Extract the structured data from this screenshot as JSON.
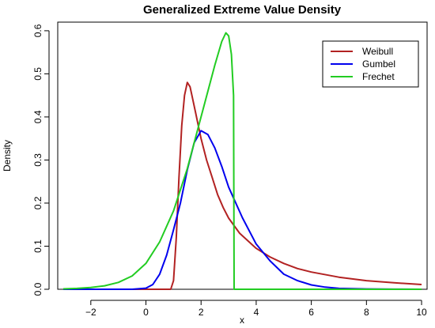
{
  "chart_data": {
    "type": "line",
    "title": "Generalized Extreme Value Density",
    "xlabel": "x",
    "ylabel": "Density",
    "xlim": [
      -3.2,
      10.2
    ],
    "ylim": [
      0,
      0.62
    ],
    "xticks": [
      -2,
      0,
      2,
      4,
      6,
      8,
      10
    ],
    "xtick_labels": [
      "−2",
      "0",
      "2",
      "4",
      "6",
      "8",
      "10"
    ],
    "yticks": [
      0.0,
      0.1,
      0.2,
      0.3,
      0.4,
      0.5,
      0.6
    ],
    "ytick_labels": [
      "0.0",
      "0.1",
      "0.2",
      "0.3",
      "0.4",
      "0.5",
      "0.6"
    ],
    "grid": false,
    "legend_position": "top-right",
    "series": [
      {
        "name": "Weibull",
        "color": "#b22222",
        "x": [
          -3,
          -1,
          0,
          0.9,
          1.0,
          1.1,
          1.2,
          1.3,
          1.4,
          1.5,
          1.6,
          1.7,
          1.8,
          1.9,
          2.0,
          2.2,
          2.4,
          2.6,
          2.8,
          3.0,
          3.4,
          4.0,
          4.5,
          5.0,
          5.5,
          6.0,
          7.0,
          8.0,
          9.0,
          10.0
        ],
        "y": [
          0,
          0,
          0,
          0,
          0.02,
          0.12,
          0.26,
          0.38,
          0.45,
          0.48,
          0.47,
          0.44,
          0.41,
          0.38,
          0.35,
          0.3,
          0.26,
          0.22,
          0.19,
          0.165,
          0.13,
          0.095,
          0.075,
          0.06,
          0.048,
          0.04,
          0.028,
          0.02,
          0.015,
          0.011
        ]
      },
      {
        "name": "Gumbel",
        "color": "#0000ee",
        "x": [
          -3,
          -2,
          -1,
          -0.5,
          0,
          0.25,
          0.5,
          0.75,
          1.0,
          1.25,
          1.5,
          1.75,
          2.0,
          2.25,
          2.5,
          2.75,
          3.0,
          3.5,
          4.0,
          4.5,
          5.0,
          5.5,
          6.0,
          6.5,
          7.0,
          8.0,
          9.0,
          10.0
        ],
        "y": [
          0,
          0,
          0,
          0,
          0.0025,
          0.011,
          0.035,
          0.079,
          0.138,
          0.2,
          0.277,
          0.34,
          0.368,
          0.359,
          0.328,
          0.285,
          0.237,
          0.166,
          0.105,
          0.066,
          0.035,
          0.02,
          0.01,
          0.005,
          0.002,
          0.0008,
          0.0002,
          0
        ]
      },
      {
        "name": "Frechet",
        "color": "#22cc22",
        "x": [
          -3,
          -2.5,
          -2,
          -1.5,
          -1,
          -0.5,
          0,
          0.5,
          1.0,
          1.5,
          2.0,
          2.5,
          2.75,
          2.9,
          3.0,
          3.1,
          3.18,
          3.2,
          3.22,
          3.4,
          4,
          5,
          6,
          7,
          8,
          9,
          10
        ],
        "y": [
          0.001,
          0.002,
          0.004,
          0.008,
          0.016,
          0.031,
          0.06,
          0.11,
          0.182,
          0.28,
          0.4,
          0.52,
          0.575,
          0.595,
          0.588,
          0.545,
          0.45,
          0.0,
          0,
          0,
          0,
          0,
          0,
          0,
          0,
          0,
          0
        ]
      }
    ]
  }
}
